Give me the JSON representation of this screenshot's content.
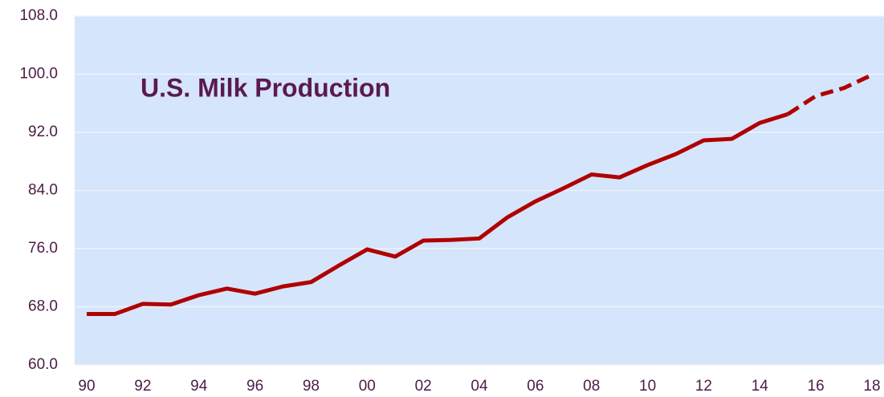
{
  "chart_data": {
    "type": "line",
    "title": "U.S. Milk Production",
    "categories": [
      "90",
      null,
      "92",
      null,
      "94",
      null,
      "96",
      null,
      "98",
      null,
      "00",
      null,
      "02",
      null,
      "04",
      null,
      "06",
      null,
      "08",
      null,
      "10",
      null,
      "12",
      null,
      "14",
      null,
      "16",
      null,
      "18"
    ],
    "series": [
      {
        "color": "#b00000",
        "dashed": false,
        "values": [
          67.0,
          67.0,
          68.4,
          68.3,
          69.6,
          70.5,
          69.8,
          70.8,
          71.4,
          73.7,
          75.9,
          74.9,
          77.1,
          77.2,
          77.4,
          80.3,
          82.5,
          84.3,
          86.2,
          85.8,
          87.5,
          89.0,
          90.9,
          91.1,
          93.3,
          94.5,
          null,
          null,
          null
        ]
      },
      {
        "color": "#b00000",
        "dashed": true,
        "values": [
          null,
          null,
          null,
          null,
          null,
          null,
          null,
          null,
          null,
          null,
          null,
          null,
          null,
          null,
          null,
          null,
          null,
          null,
          null,
          null,
          null,
          null,
          null,
          null,
          null,
          94.5,
          97.0,
          98.1,
          99.9
        ]
      }
    ],
    "ylim": [
      60,
      108
    ],
    "yticks": [
      {
        "value": 60,
        "label": "60.0"
      },
      {
        "value": 68,
        "label": "68.0"
      },
      {
        "value": 76,
        "label": "76.0"
      },
      {
        "value": 84,
        "label": "84.0"
      },
      {
        "value": 92,
        "label": "92.0"
      },
      {
        "value": 100,
        "label": "100.0"
      },
      {
        "value": 108,
        "label": "108.0"
      }
    ],
    "grid": true,
    "background": "#d5e5fb"
  }
}
